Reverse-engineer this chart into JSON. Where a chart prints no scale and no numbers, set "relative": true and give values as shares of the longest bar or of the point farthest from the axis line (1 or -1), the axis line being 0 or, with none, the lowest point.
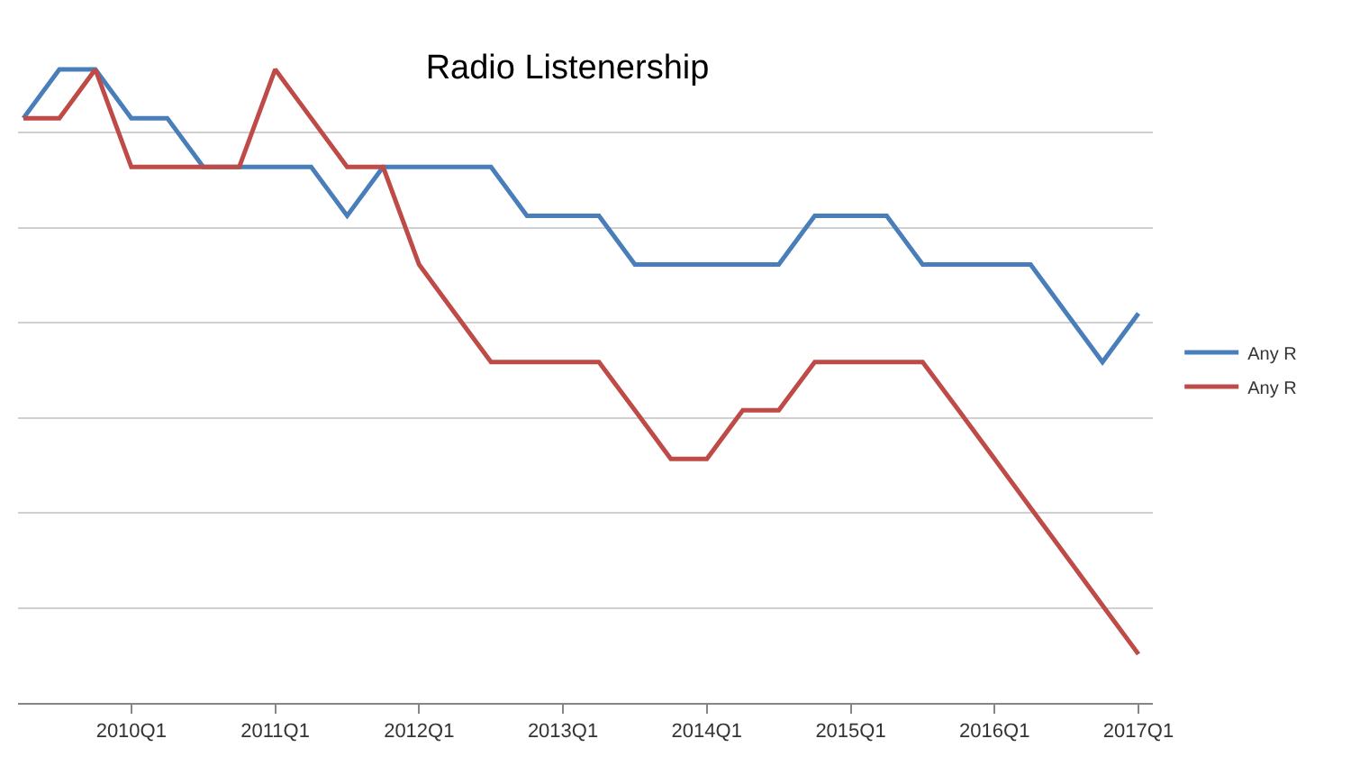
{
  "chart_data": {
    "type": "line",
    "title": "Radio Listenership",
    "relative": true,
    "grid": "y",
    "legend": "right",
    "marker": "none",
    "line_style": "solid",
    "categories": [
      null,
      null,
      null,
      "2010Q1",
      null,
      null,
      null,
      "2011Q1",
      null,
      null,
      null,
      "2012Q1",
      null,
      null,
      null,
      "2013Q1",
      null,
      null,
      null,
      "2014Q1",
      null,
      null,
      null,
      "2015Q1",
      null,
      null,
      null,
      "2016Q1",
      null,
      null,
      null,
      "2017Q1"
    ],
    "series": [
      {
        "name": "Any R",
        "color": "#4a7ebb",
        "values": [
          0.923,
          1,
          1,
          0.923,
          0.923,
          0.846,
          0.846,
          0.846,
          0.846,
          0.769,
          0.846,
          0.846,
          0.846,
          0.846,
          0.769,
          0.769,
          0.769,
          0.692,
          0.692,
          0.692,
          0.692,
          0.692,
          0.769,
          0.769,
          0.769,
          0.692,
          0.692,
          0.692,
          0.692,
          0.615,
          0.538,
          0.615
        ]
      },
      {
        "name": "Any R",
        "color": "#be4b48",
        "values": [
          0.923,
          0.923,
          1,
          0.846,
          0.846,
          0.846,
          0.846,
          1,
          0.923,
          0.846,
          0.846,
          0.692,
          0.615,
          0.538,
          0.538,
          0.538,
          0.538,
          0.462,
          0.385,
          0.385,
          0.462,
          0.462,
          0.538,
          0.538,
          0.538,
          0.538,
          0.462,
          0.385,
          0.308,
          0.231,
          0.154,
          0.077
        ]
      }
    ]
  }
}
